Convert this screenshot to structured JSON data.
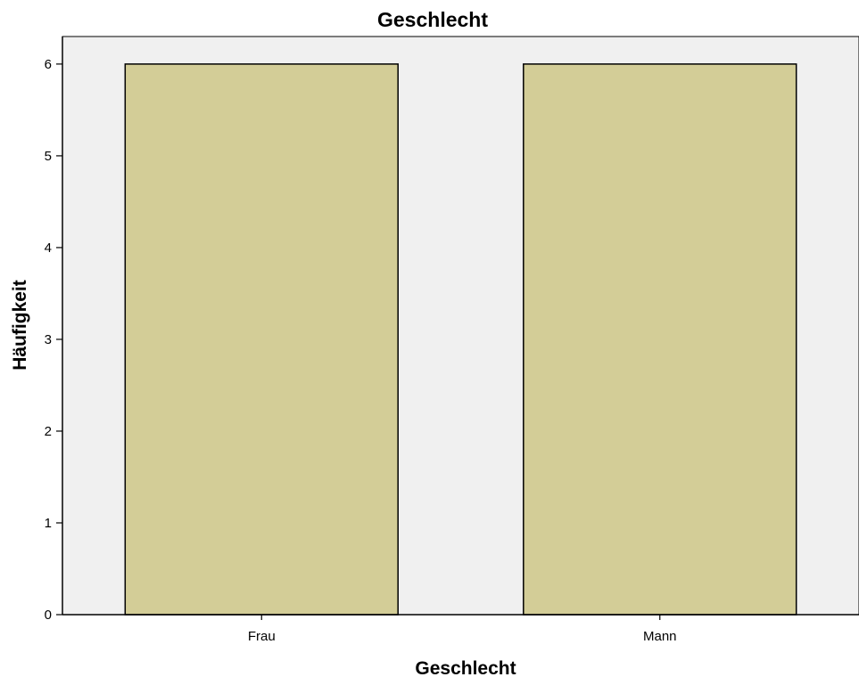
{
  "chart_data": {
    "type": "bar",
    "title": "Geschlecht",
    "xlabel": "Geschlecht",
    "ylabel": "Häufigkeit",
    "categories": [
      "Frau",
      "Mann"
    ],
    "values": [
      6,
      6
    ],
    "ylim": [
      0,
      6.3
    ],
    "yticks": [
      "0",
      "1",
      "2",
      "3",
      "4",
      "5",
      "6"
    ],
    "grid": false,
    "colors": {
      "bar_fill": "#d3cd97",
      "bar_stroke": "#000000",
      "plot_background": "#f0f0f0",
      "axis": "#000000"
    }
  }
}
